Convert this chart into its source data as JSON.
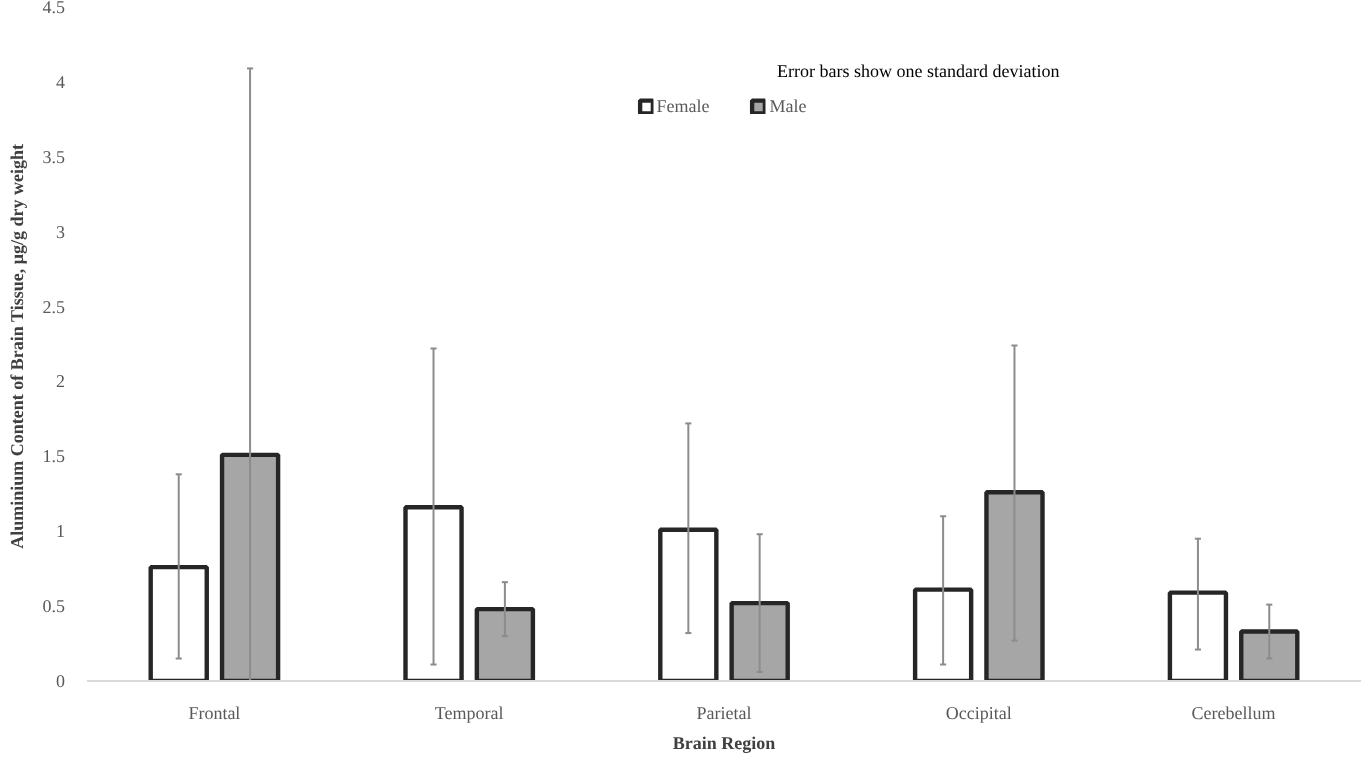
{
  "chart_data": {
    "type": "bar",
    "xlabel": "Brain Region",
    "ylabel": "Aluminium  Content of Brain Tissue, μg/g dry weight",
    "categories": [
      "Frontal",
      "Temporal",
      "Parietal",
      "Occipital",
      "Cerebellum"
    ],
    "series": [
      {
        "name": "Female",
        "color": "#ffffff",
        "values": [
          0.76,
          1.16,
          1.01,
          0.61,
          0.59
        ],
        "errors": [
          [
            0.15,
            1.38
          ],
          [
            0.11,
            2.22
          ],
          [
            0.32,
            1.72
          ],
          [
            0.11,
            1.1
          ],
          [
            0.21,
            0.95
          ]
        ]
      },
      {
        "name": "Male",
        "color": "#a6a6a6",
        "values": [
          1.51,
          0.48,
          0.52,
          1.26,
          0.33
        ],
        "errors": [
          [
            0,
            4.09
          ],
          [
            0.3,
            0.66
          ],
          [
            0.06,
            0.98
          ],
          [
            0.27,
            2.24
          ],
          [
            0.15,
            0.51
          ]
        ]
      }
    ],
    "ylim": [
      0,
      4.5
    ],
    "yticks": [
      0,
      0.5,
      1,
      1.5,
      2,
      2.5,
      3,
      3.5,
      4,
      4.5
    ],
    "grid": false,
    "legend": "top",
    "annotations": [
      "Error bars show one standard deviation"
    ]
  }
}
